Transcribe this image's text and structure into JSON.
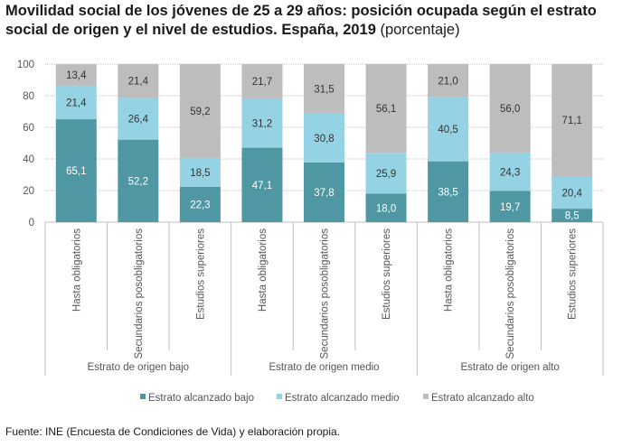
{
  "title_main": "Movilidad social de los jóvenes de 25 a 29 años: posición ocupada según el estrato social de origen y el nivel de estudios. España, 2019",
  "title_sub": "(porcentaje)",
  "source": "Fuente: INE (Encuesta de Condiciones de Vida) y elaboración propia.",
  "colors": {
    "bajo": "#4e97a3",
    "medio": "#95d3e4",
    "alto": "#bdbdbd",
    "grid": "#bfbfbf",
    "axis_text": "#555555"
  },
  "chart_data": {
    "type": "bar",
    "stacked": true,
    "ylim": [
      0,
      100
    ],
    "yticks": [
      0,
      20,
      40,
      60,
      80,
      100
    ],
    "legend_position": "bottom",
    "groups": [
      "Estrato de origen bajo",
      "Estrato de origen medio",
      "Estrato de origen alto"
    ],
    "categories": [
      "Hasta obligatorios",
      "Secundarios posobligatorios",
      "Estudios superiores",
      "Hasta obligatorios",
      "Secundarios posobligatorios",
      "Estudios superiores",
      "Hasta obligatorios",
      "Secundarios posobligatorios",
      "Estudios superiores"
    ],
    "series": [
      {
        "name": "Estrato alcanzado bajo",
        "key": "bajo",
        "values": [
          65.1,
          52.2,
          22.3,
          47.1,
          37.8,
          18.0,
          38.5,
          19.7,
          8.5
        ]
      },
      {
        "name": "Estrato alcanzado medio",
        "key": "medio",
        "values": [
          21.4,
          26.4,
          18.5,
          31.2,
          30.8,
          25.9,
          40.5,
          24.3,
          20.4
        ]
      },
      {
        "name": "Estrato alcanzado alto",
        "key": "alto",
        "values": [
          13.4,
          21.4,
          59.2,
          21.7,
          31.5,
          56.1,
          21.0,
          56.0,
          71.1
        ]
      }
    ],
    "labels": [
      [
        "65,1",
        "52,2",
        "22,3",
        "47,1",
        "37,8",
        "18,0",
        "38,5",
        "19,7",
        "8,5"
      ],
      [
        "21,4",
        "26,4",
        "18,5",
        "31,2",
        "30,8",
        "25,9",
        "40,5",
        "24,3",
        "20,4"
      ],
      [
        "13,4",
        "21,4",
        "59,2",
        "21,7",
        "31,5",
        "56,1",
        "21,0",
        "56,0",
        "71,1"
      ]
    ]
  }
}
